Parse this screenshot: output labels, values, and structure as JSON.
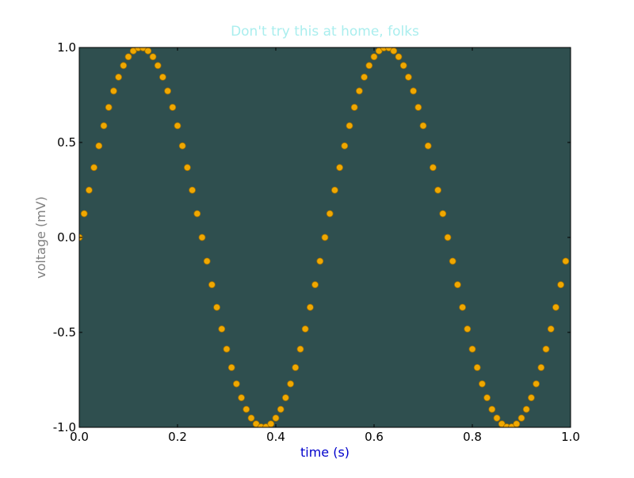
{
  "chart_data": {
    "type": "scatter",
    "title": "Don't try this at home, folks",
    "xlabel": "time (s)",
    "ylabel": "voltage (mV)",
    "xlim": [
      0.0,
      1.0
    ],
    "ylim": [
      -1.0,
      1.0
    ],
    "x_ticks": [
      0.0,
      0.2,
      0.4,
      0.6,
      0.8,
      1.0
    ],
    "x_tick_labels": [
      "0.0",
      "0.2",
      "0.4",
      "0.6",
      "0.8",
      "1.0"
    ],
    "y_ticks": [
      1.0,
      0.5,
      0.0,
      -0.5,
      -1.0
    ],
    "y_tick_labels": [
      "1.0",
      "0.5",
      "0.0",
      "-0.5",
      "-1.0"
    ],
    "grid": false,
    "legend": "none",
    "series": [
      {
        "x": [
          0.0,
          0.01,
          0.02,
          0.03,
          0.04,
          0.05,
          0.06,
          0.07,
          0.08,
          0.09,
          0.1,
          0.11,
          0.12,
          0.13,
          0.14,
          0.15,
          0.16,
          0.17,
          0.18,
          0.19,
          0.2,
          0.21,
          0.22,
          0.23,
          0.24,
          0.25,
          0.26,
          0.27,
          0.28,
          0.29,
          0.3,
          0.31,
          0.32,
          0.33,
          0.34,
          0.35,
          0.36,
          0.37,
          0.38,
          0.39,
          0.4,
          0.41,
          0.42,
          0.43,
          0.44,
          0.45,
          0.46,
          0.47,
          0.48,
          0.49,
          0.5,
          0.51,
          0.52,
          0.53,
          0.54,
          0.55,
          0.56,
          0.57,
          0.58,
          0.59,
          0.6,
          0.61,
          0.62,
          0.63,
          0.64,
          0.65,
          0.66,
          0.67,
          0.68,
          0.69,
          0.7,
          0.71,
          0.72,
          0.73,
          0.74,
          0.75,
          0.76,
          0.77,
          0.78,
          0.79,
          0.8,
          0.81,
          0.82,
          0.83,
          0.84,
          0.85,
          0.86,
          0.87,
          0.88,
          0.89,
          0.9,
          0.91,
          0.92,
          0.93,
          0.94,
          0.95,
          0.96,
          0.97,
          0.98,
          0.99
        ],
        "y": [
          0.0,
          0.125,
          0.249,
          0.368,
          0.482,
          0.588,
          0.685,
          0.771,
          0.844,
          0.905,
          0.951,
          0.982,
          0.998,
          0.998,
          0.982,
          0.951,
          0.905,
          0.844,
          0.771,
          0.685,
          0.588,
          0.482,
          0.368,
          0.249,
          0.125,
          0.0,
          -0.125,
          -0.249,
          -0.368,
          -0.482,
          -0.588,
          -0.685,
          -0.771,
          -0.844,
          -0.905,
          -0.951,
          -0.982,
          -0.998,
          -0.998,
          -0.982,
          -0.951,
          -0.905,
          -0.844,
          -0.771,
          -0.685,
          -0.588,
          -0.482,
          -0.368,
          -0.249,
          -0.125,
          0.0,
          0.125,
          0.249,
          0.368,
          0.482,
          0.588,
          0.685,
          0.771,
          0.844,
          0.905,
          0.951,
          0.982,
          0.998,
          0.998,
          0.982,
          0.951,
          0.905,
          0.844,
          0.771,
          0.685,
          0.588,
          0.482,
          0.368,
          0.249,
          0.125,
          0.0,
          -0.125,
          -0.249,
          -0.368,
          -0.482,
          -0.588,
          -0.685,
          -0.771,
          -0.844,
          -0.905,
          -0.951,
          -0.982,
          -0.998,
          -0.998,
          -0.982,
          -0.951,
          -0.905,
          -0.844,
          -0.771,
          -0.685,
          -0.588,
          -0.482,
          -0.368,
          -0.249,
          -0.125
        ],
        "marker": "circle",
        "marker_color": "#f0a800",
        "marker_edge_color": "#a07000"
      }
    ]
  },
  "colors": {
    "plot_background": "#2f4f4f",
    "title": "#aaeeee",
    "xlabel": "#0000cc",
    "ylabel": "#808080",
    "tick_labels": "#000000",
    "axes_frame": "#000000"
  }
}
